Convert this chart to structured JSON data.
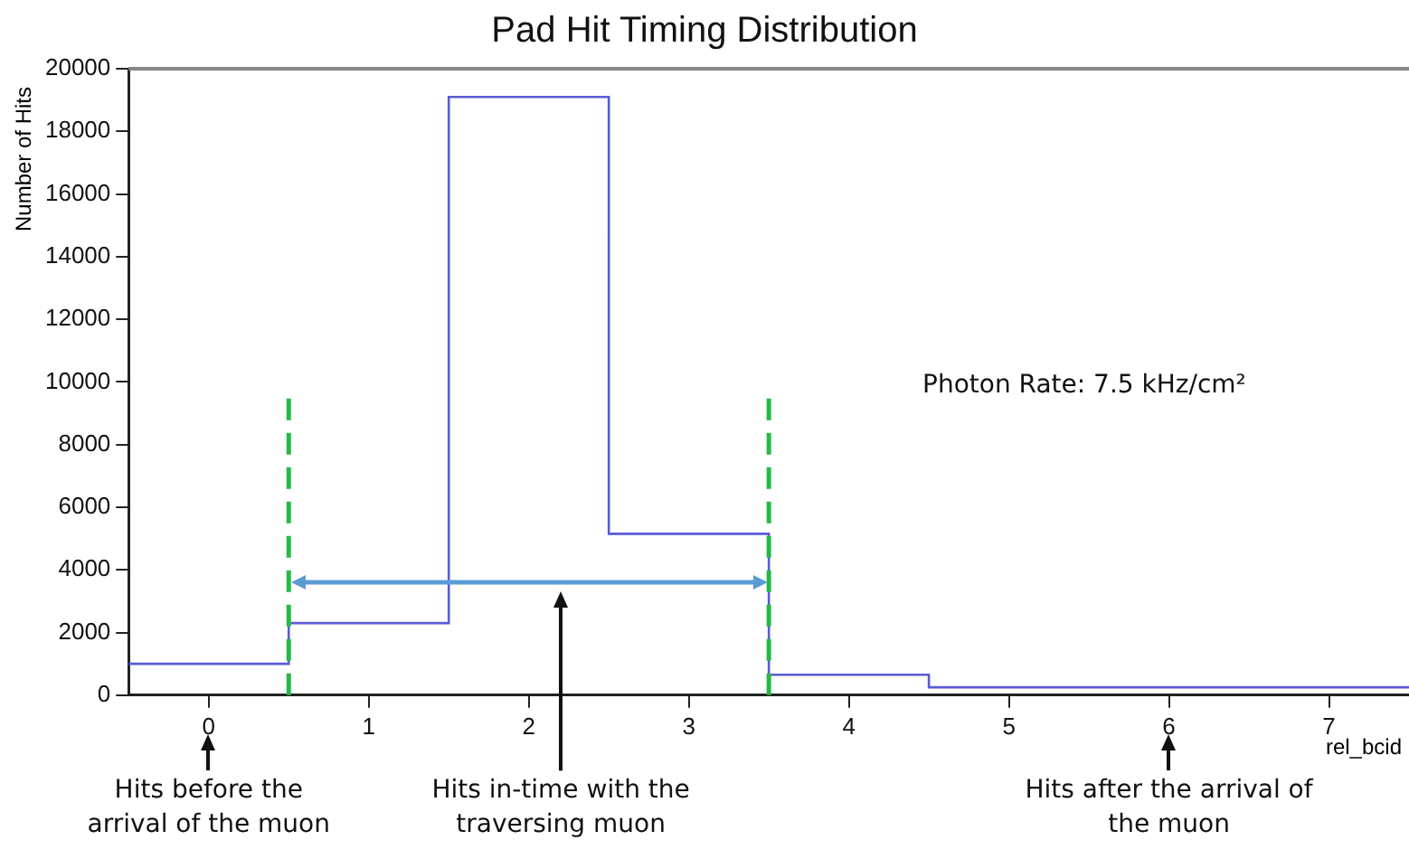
{
  "chart_data": {
    "type": "histogram",
    "title": "Pad Hit Timing Distribution",
    "xlabel": "rel_bcid",
    "ylabel": "Number of Hits",
    "bins": [
      -0.5,
      0.5,
      1.5,
      2.5,
      3.5,
      4.5,
      5.5,
      6.5,
      7.5
    ],
    "values": [
      1000,
      2300,
      19100,
      5150,
      650,
      250,
      250,
      250
    ],
    "color": "#5b5bd6",
    "xlim": [
      -0.5,
      7.5
    ],
    "xticks": [
      0,
      1,
      2,
      3,
      4,
      5,
      6,
      7
    ],
    "ylim": [
      0,
      20000
    ],
    "yticks": [
      0,
      2000,
      4000,
      6000,
      8000,
      10000,
      12000,
      14000,
      16000,
      18000,
      20000
    ],
    "grid": false,
    "legend": false,
    "ref_lines": [
      {
        "axis": "x",
        "value": 0.5,
        "color": "#22bb44",
        "line_style": "dashed"
      },
      {
        "axis": "x",
        "value": 3.5,
        "color": "#22bb44",
        "line_style": "dashed"
      }
    ],
    "annotations": [
      "Photon Rate: 7.5 kHz/cm²",
      "Hits before the arrival of the muon",
      "Hits in-time with the traversing muon",
      "Hits after the arrival of the muon"
    ]
  }
}
